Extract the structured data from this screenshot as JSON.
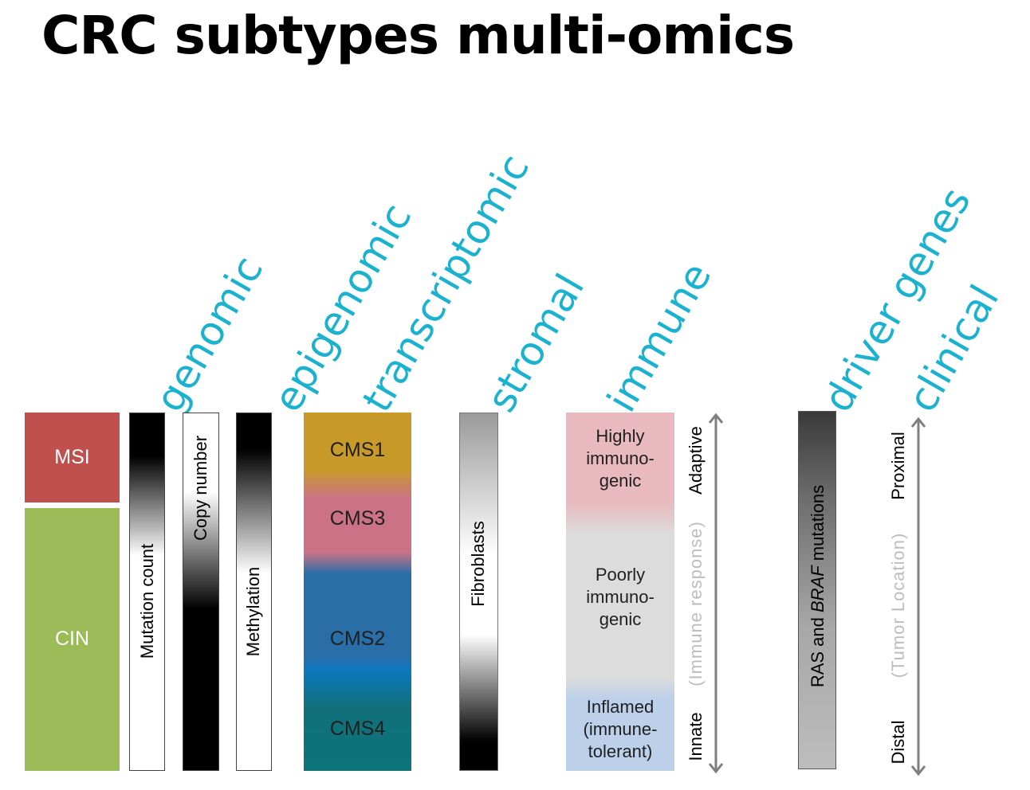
{
  "title": "CRC subtypes multi-omics",
  "headers": {
    "genomic": "genomic",
    "epigenomic": "epigenomic",
    "transcriptomic": "transcriptomic",
    "stromal": "stromal",
    "immune": "immune",
    "driver_genes": "driver genes",
    "clinical": "clinical"
  },
  "genomic": {
    "msi": "MSI",
    "cin": "CIN",
    "mutation_count": "Mutation count",
    "copy_number": "Copy number"
  },
  "epigenomic": {
    "methylation": "Methylation"
  },
  "transcriptomic": {
    "cms1": "CMS1",
    "cms3": "CMS3",
    "cms2": "CMS2",
    "cms4": "CMS4"
  },
  "stromal": {
    "fibroblasts": "Fibroblasts"
  },
  "immune": {
    "highly": "Highly",
    "highly_2": "immuno-",
    "highly_3": "genic",
    "poorly": "Poorly",
    "poorly_2": "immuno-",
    "poorly_3": "genic",
    "inflamed": "Inflamed",
    "inflamed_2": "(immune-",
    "inflamed_3": "tolerant)",
    "adaptive": "Adaptive",
    "immune_response": "(Immune response)",
    "innate": "Innate"
  },
  "driver_genes": {
    "ras_pre": "RAS and ",
    "braf": "BRAF",
    "ras_post": " mutations"
  },
  "clinical": {
    "proximal": "Proximal",
    "tumor_location": "(Tumor Location)",
    "distal": "Distal"
  },
  "colors": {
    "header": "#1ab2cf",
    "msi": "#c0504d",
    "cin": "#9bbb59",
    "cms1": "#c89a2a",
    "cms3": "#cc7286",
    "cms2": "#2a6ea8",
    "cms4": "#11707a",
    "highly": "#e8b9be",
    "poorly": "#dcdcdc",
    "inflamed": "#bcd0ea"
  }
}
